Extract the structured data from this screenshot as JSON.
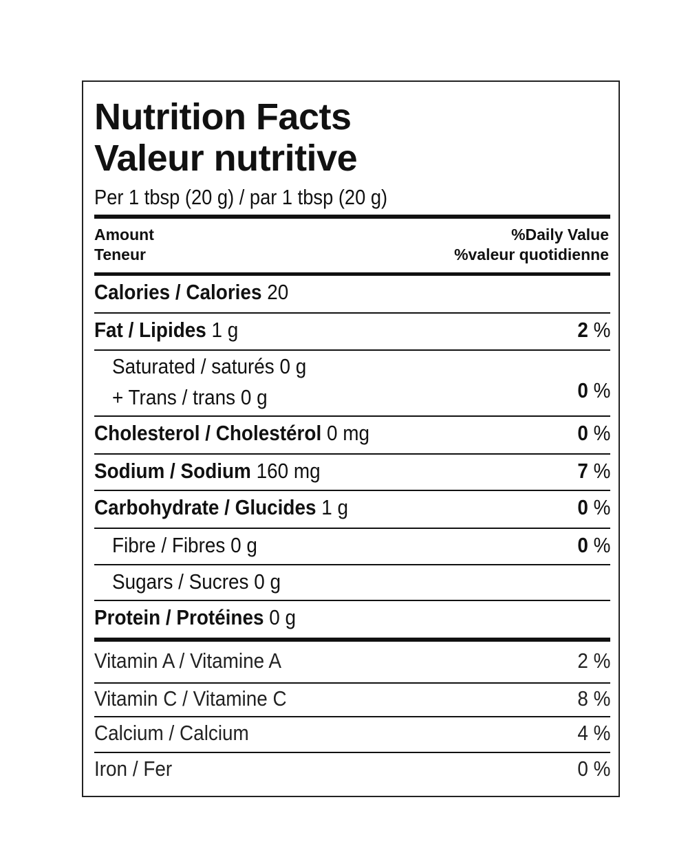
{
  "title_en": "Nutrition Facts",
  "title_fr": "Valeur nutritive",
  "serving": "Per 1 tbsp (20 g) / par 1 tbsp (20 g)",
  "header": {
    "amount": "Amount",
    "teneur": "Teneur",
    "dv_en": "%Daily Value",
    "dv_fr": "%valeur quotidienne"
  },
  "nutrients": [
    {
      "label": "Calories / Calories",
      "amount": "20",
      "dv": "",
      "pct": ""
    },
    {
      "label": "Fat / Lipides",
      "amount": "1 g",
      "dv": "2",
      "pct": "%"
    },
    {
      "label": "Saturated / saturés 0 g",
      "amount": "",
      "dv": "",
      "pct": ""
    },
    {
      "label": "+ Trans / trans 0 g",
      "amount": "",
      "dv": "0",
      "pct": "%"
    },
    {
      "label": "Cholesterol / Cholestérol",
      "amount": "0 mg",
      "dv": "0",
      "pct": "%"
    },
    {
      "label": "Sodium / Sodium",
      "amount": "160 mg",
      "dv": "7",
      "pct": "%"
    },
    {
      "label": "Carbohydrate / Glucides",
      "amount": "1 g",
      "dv": "0",
      "pct": "%"
    },
    {
      "label": "Fibre / Fibres 0 g",
      "amount": "",
      "dv": "0",
      "pct": "%"
    },
    {
      "label": "Sugars / Sucres 0 g",
      "amount": "",
      "dv": "",
      "pct": ""
    },
    {
      "label": "Protein / Protéines",
      "amount": "0 g",
      "dv": "",
      "pct": ""
    }
  ],
  "vitamins": [
    {
      "label": "Vitamin A / Vitamine A",
      "value": "2 %"
    },
    {
      "label": "Vitamin C / Vitamine C",
      "value": "8 %"
    },
    {
      "label": "Calcium / Calcium",
      "value": "4 %"
    },
    {
      "label": "Iron / Fer",
      "value": "0 %"
    }
  ]
}
